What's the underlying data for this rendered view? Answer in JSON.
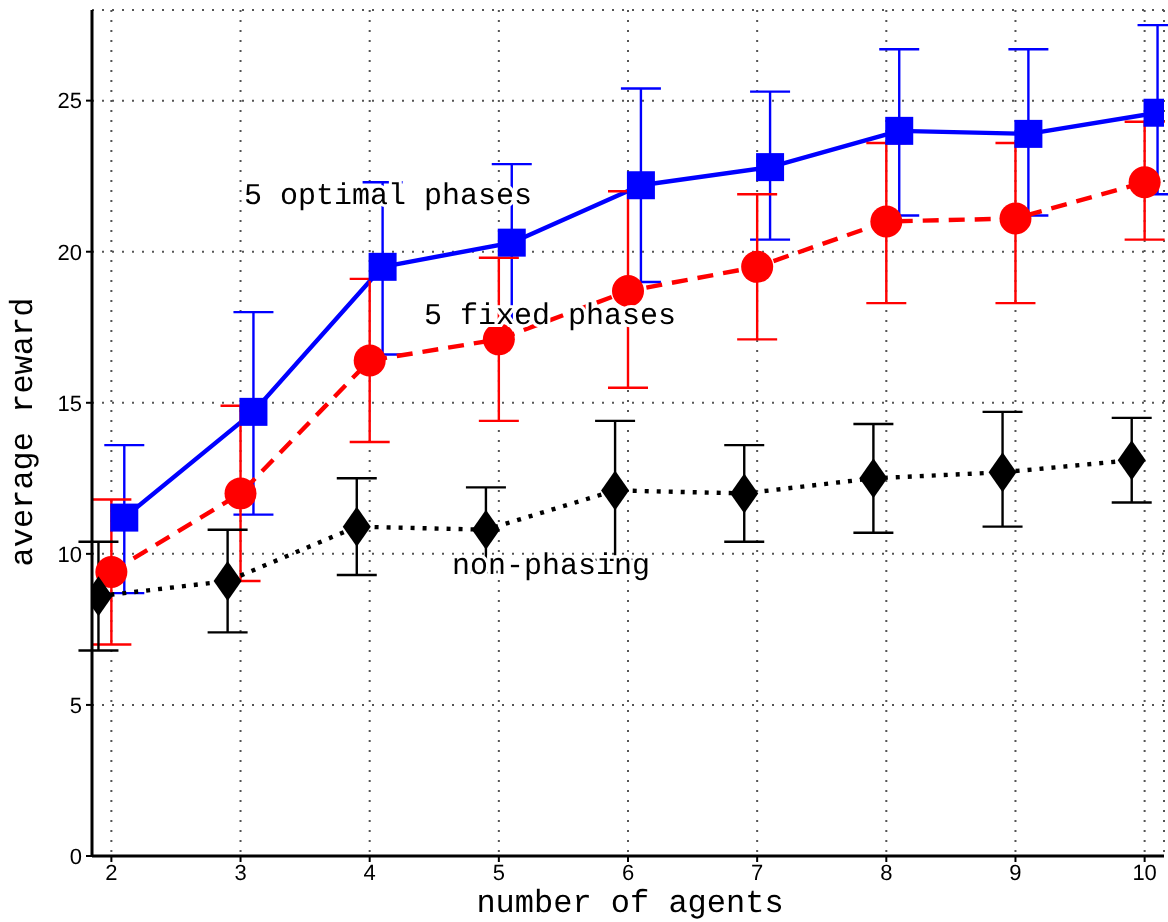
{
  "chart_data": {
    "type": "line",
    "xlabel": "number of agents",
    "ylabel": "average reward",
    "xlim": [
      1.85,
      10.15
    ],
    "ylim": [
      0,
      28
    ],
    "xticks": [
      2,
      3,
      4,
      5,
      6,
      7,
      8,
      9,
      10
    ],
    "yticks": [
      0,
      5,
      10,
      15,
      20,
      25
    ],
    "grid": true,
    "legend": false,
    "series": [
      {
        "color": "#0000ff",
        "marker": "square",
        "line_style": "solid",
        "x": [
          2.1,
          3.1,
          4.1,
          5.1,
          6.1,
          7.1,
          8.1,
          9.1,
          10.1
        ],
        "values": [
          11.2,
          14.7,
          19.5,
          20.3,
          22.2,
          22.8,
          24.0,
          23.9,
          24.6
        ],
        "errors": [
          [
            8.7,
            13.6
          ],
          [
            11.3,
            18.0
          ],
          [
            16.6,
            22.3
          ],
          [
            17.7,
            22.9
          ],
          [
            19.0,
            25.4
          ],
          [
            20.4,
            25.3
          ],
          [
            21.2,
            26.7
          ],
          [
            21.2,
            26.7
          ],
          [
            21.9,
            27.5
          ]
        ]
      },
      {
        "color": "#ff0000",
        "marker": "circle",
        "line_style": "dashed",
        "x": [
          2,
          3,
          4,
          5,
          6,
          7,
          8,
          9,
          10
        ],
        "values": [
          9.4,
          12.0,
          16.4,
          17.1,
          18.7,
          19.5,
          21.0,
          21.1,
          22.3
        ],
        "errors": [
          [
            7.0,
            11.8
          ],
          [
            9.1,
            14.9
          ],
          [
            13.7,
            19.1
          ],
          [
            14.4,
            19.8
          ],
          [
            15.5,
            22.0
          ],
          [
            17.1,
            21.9
          ],
          [
            18.3,
            23.6
          ],
          [
            18.3,
            23.6
          ],
          [
            20.4,
            24.3
          ]
        ]
      },
      {
        "color": "#000000",
        "marker": "diamond",
        "line_style": "dotted",
        "x": [
          1.9,
          2.9,
          3.9,
          4.9,
          5.9,
          6.9,
          7.9,
          8.9,
          9.9
        ],
        "values": [
          8.6,
          9.1,
          10.9,
          10.8,
          12.1,
          12.0,
          12.5,
          12.7,
          13.1
        ],
        "errors": [
          [
            6.8,
            10.4
          ],
          [
            7.4,
            10.8
          ],
          [
            9.3,
            12.5
          ],
          [
            9.4,
            12.2
          ],
          [
            9.8,
            14.4
          ],
          [
            10.4,
            13.6
          ],
          [
            10.7,
            14.3
          ],
          [
            10.9,
            14.7
          ],
          [
            11.7,
            14.5
          ]
        ]
      }
    ],
    "annotations": [
      "5 optimal phases",
      "5 fixed phases",
      "non-phasing"
    ]
  }
}
